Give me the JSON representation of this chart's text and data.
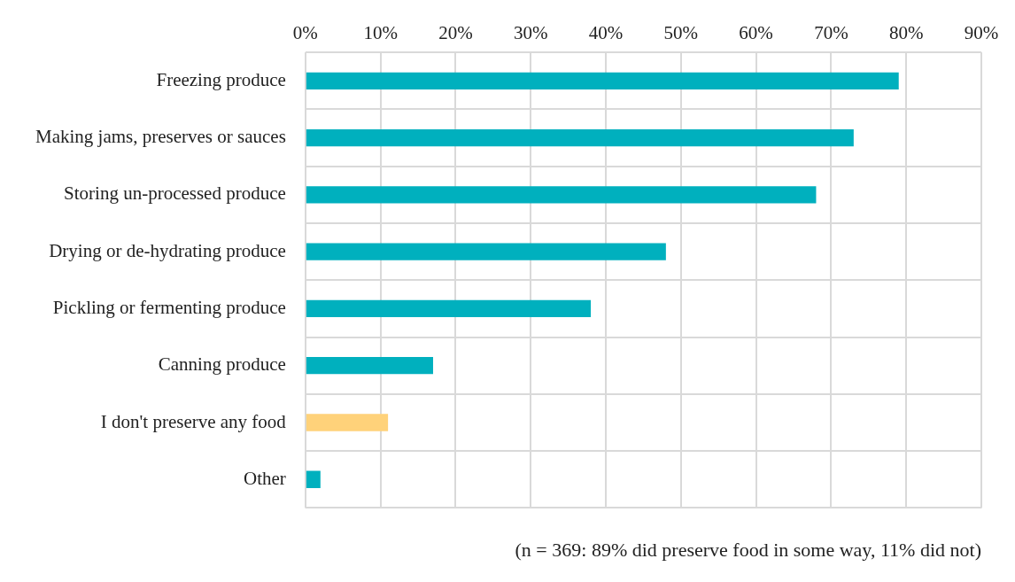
{
  "chart_data": {
    "type": "bar",
    "orientation": "horizontal",
    "categories": [
      "Freezing produce",
      "Making jams, preserves or sauces",
      "Storing un-processed produce",
      "Drying or de-hydrating produce",
      "Pickling or fermenting produce",
      "Canning produce",
      "I don't preserve any food",
      "Other"
    ],
    "values": [
      79,
      73,
      68,
      48,
      38,
      17,
      11,
      2
    ],
    "colors": [
      "#00b0be",
      "#00b0be",
      "#00b0be",
      "#00b0be",
      "#00b0be",
      "#00b0be",
      "#ffd27a",
      "#00b0be"
    ],
    "xlim": [
      0,
      90
    ],
    "xticks": [
      {
        "value": 0,
        "label": "0%"
      },
      {
        "value": 10,
        "label": "10%"
      },
      {
        "value": 20,
        "label": "20%"
      },
      {
        "value": 30,
        "label": "30%"
      },
      {
        "value": 40,
        "label": "40%"
      },
      {
        "value": 50,
        "label": "50%"
      },
      {
        "value": 60,
        "label": "60%"
      },
      {
        "value": 70,
        "label": "70%"
      },
      {
        "value": 80,
        "label": "80%"
      },
      {
        "value": 90,
        "label": "90%"
      }
    ],
    "grid": true,
    "legend": false,
    "annotations": [
      "(n = 369: 89% did preserve food in some way, 11% did not)"
    ]
  }
}
